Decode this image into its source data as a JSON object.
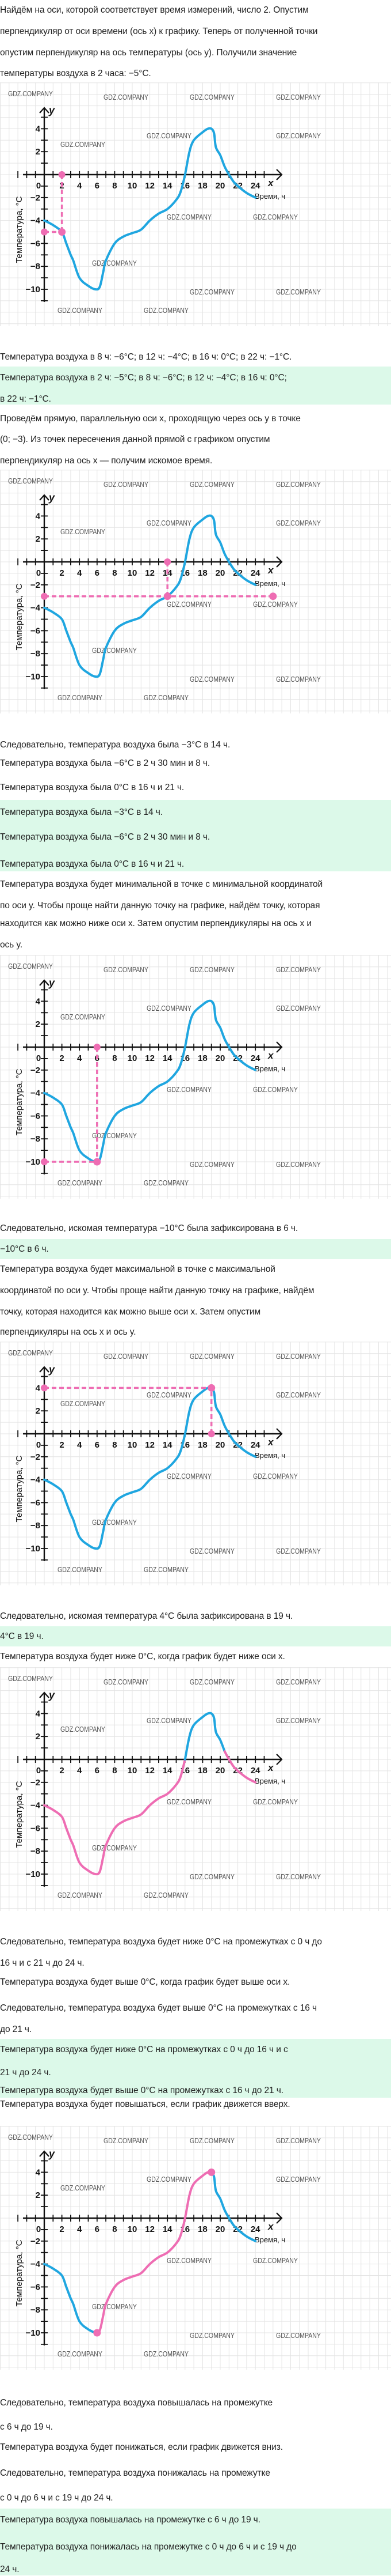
{
  "text": {
    "p1": [
      "Найдём на оси, которой соответствует время измерений, число 2. Опустим",
      "перпендикуляр от оси времени (ось x) к графику. Теперь от полученной точки",
      "опустим перпендикуляр на ось температуры (ось y). Получили значение",
      "температуры воздуха в 2 часа: −5°C."
    ],
    "r1": "Температура воздуха в 8 ч: −6°C; в 12 ч: −4°C; в 16 ч: 0°C; в 22 ч: −1°C.",
    "a1": [
      "Температура воздуха в 2 ч: −5°C; в 8 ч: −6°C; в 12 ч: −4°C; в 16 ч: 0°C;",
      "в 22 ч: −1°C."
    ],
    "p2": [
      "Проведём прямую, параллельную оси x, проходящую через ось y в точке",
      "(0; −3). Из точек пересечения данной прямой с графиком опустим",
      "перпендикуляр на ось x — получим искомое время."
    ],
    "r2": [
      "Следовательно, температура воздуха была −3°C в 14 ч.",
      "Температура воздуха была −6°C в 2 ч 30 мин и 8 ч.",
      "Температура воздуха была 0°C в 16 ч и 21 ч."
    ],
    "a2": [
      "Температура воздуха была −3°C в 14 ч.",
      "Температура воздуха была −6°C в 2 ч 30 мин и 8 ч.",
      "Температура воздуха была 0°C в 16 ч и 21 ч."
    ],
    "p3": [
      "Температура воздуха будет минимальной в точке с минимальной координатой",
      "по оси y. Чтобы проще найти данную точку на графике, найдём точку, которая",
      "находится как можно ниже оси x. Затем опустим перпендикуляры на ось x и",
      "ось y."
    ],
    "r3": "Следовательно, искомая температура −10°C была зафиксирована в 6 ч.",
    "a3": "−10°C в 6 ч.",
    "p4": [
      "Температура воздуха будет максимальной в точке с максимальной",
      "координатой по оси y. Чтобы проще найти данную точку на графике, найдём",
      "точку, которая находится как можно выше оси x. Затем опустим",
      "перпендикуляры на ось x и ось y."
    ],
    "r4": "Следовательно, искомая температура 4°C была зафиксирована в 19 ч.",
    "a4": "4°C в 19 ч.",
    "p5": "Температура воздуха будет ниже 0°C, когда график будет ниже оси x.",
    "r5": [
      "Следовательно, температура воздуха будет ниже 0°C на промежутках с 0 ч до",
      "16 ч и с 21 ч до 24 ч.",
      "Температура воздуха будет выше 0°C, когда график будет выше оси x.",
      "Следовательно, температура воздуха будет выше 0°C на промежутках с 16 ч",
      "до 21 ч."
    ],
    "a5": [
      "Температура воздуха будет ниже 0°C на промежутках с 0 ч до 16 ч и с",
      "21 ч до 24 ч.",
      "Температура воздуха будет выше 0°C на промежутках с 16 ч до 21 ч."
    ],
    "p6": "Температура воздуха будет повышаться, если график движется вверх.",
    "r6": [
      "Следовательно, температура воздуха повышалась на промежутке",
      "с 6 ч до 19 ч.",
      "Температура воздуха будет понижаться, если график движется вниз.",
      "Следовательно, температура воздуха понижалась на промежутке",
      "с 0 ч до 6 ч и с 19 ч до 24 ч."
    ],
    "a6": [
      "Температура воздуха повышалась на промежутке с 6 ч до 19 ч.",
      "Температура воздуха понижалась на промежутке с 0 ч до 6 ч и с 19 ч до",
      "24 ч."
    ]
  },
  "watermark": "GDZ.COMPANY",
  "colors": {
    "curve": "#1fa6e0",
    "highlight": "#ee6db3",
    "grid": "#e4e4e4",
    "answer_bg": "#dcf9e9"
  },
  "chart_data": {
    "type": "line",
    "xlabel": "Время, ч",
    "ylabel": "Температура, °C",
    "x_axis_name": "x",
    "y_axis_name": "y",
    "xlim": [
      0,
      24
    ],
    "ylim": [
      -10,
      4
    ],
    "x_tick_labels": [
      "0",
      "2",
      "4",
      "6",
      "8",
      "10",
      "12",
      "14",
      "16",
      "18",
      "20",
      "22",
      "24"
    ],
    "y_tick_labels": [
      "4",
      "2",
      "-2",
      "-4",
      "-6",
      "-8",
      "-10"
    ],
    "grid": true,
    "series": [
      {
        "name": "temperature",
        "x": [
          0,
          1,
          2,
          2.5,
          3,
          3.3,
          4,
          5,
          5.8,
          6.3,
          6.7,
          7,
          8,
          9,
          10,
          11,
          12,
          13,
          14,
          15,
          15.5,
          16,
          16.5,
          17,
          18,
          18.6,
          19,
          19.3,
          19.5,
          20,
          20.5,
          21,
          21.5,
          22,
          23,
          24
        ],
        "y": [
          -4,
          -4.4,
          -5,
          -6,
          -7,
          -7.5,
          -9,
          -9.7,
          -10,
          -9.8,
          -8.5,
          -7.5,
          -6,
          -5.4,
          -5.1,
          -4.8,
          -4,
          -3.4,
          -3,
          -2.2,
          -1.5,
          0,
          2,
          3,
          3.7,
          4,
          4,
          3.6,
          2.4,
          1.7,
          0.7,
          0,
          -0.6,
          -1,
          -1.6,
          -2
        ]
      }
    ],
    "figures": [
      {
        "guides": [
          {
            "x": 2,
            "y": -5
          }
        ]
      },
      {
        "guides": [
          {
            "x": 14,
            "y": -3
          }
        ],
        "hline_to": 26
      },
      {
        "guides": [
          {
            "x": 6,
            "y": -10
          }
        ]
      },
      {
        "guides": [
          {
            "x": 19,
            "y": 4
          }
        ]
      },
      {
        "highlight": {
          "mode": "below-zero"
        }
      },
      {
        "highlight": {
          "mode": "range",
          "from": 6,
          "to": 19
        },
        "markers": [
          [
            6,
            -10
          ],
          [
            19,
            4
          ]
        ]
      }
    ]
  }
}
